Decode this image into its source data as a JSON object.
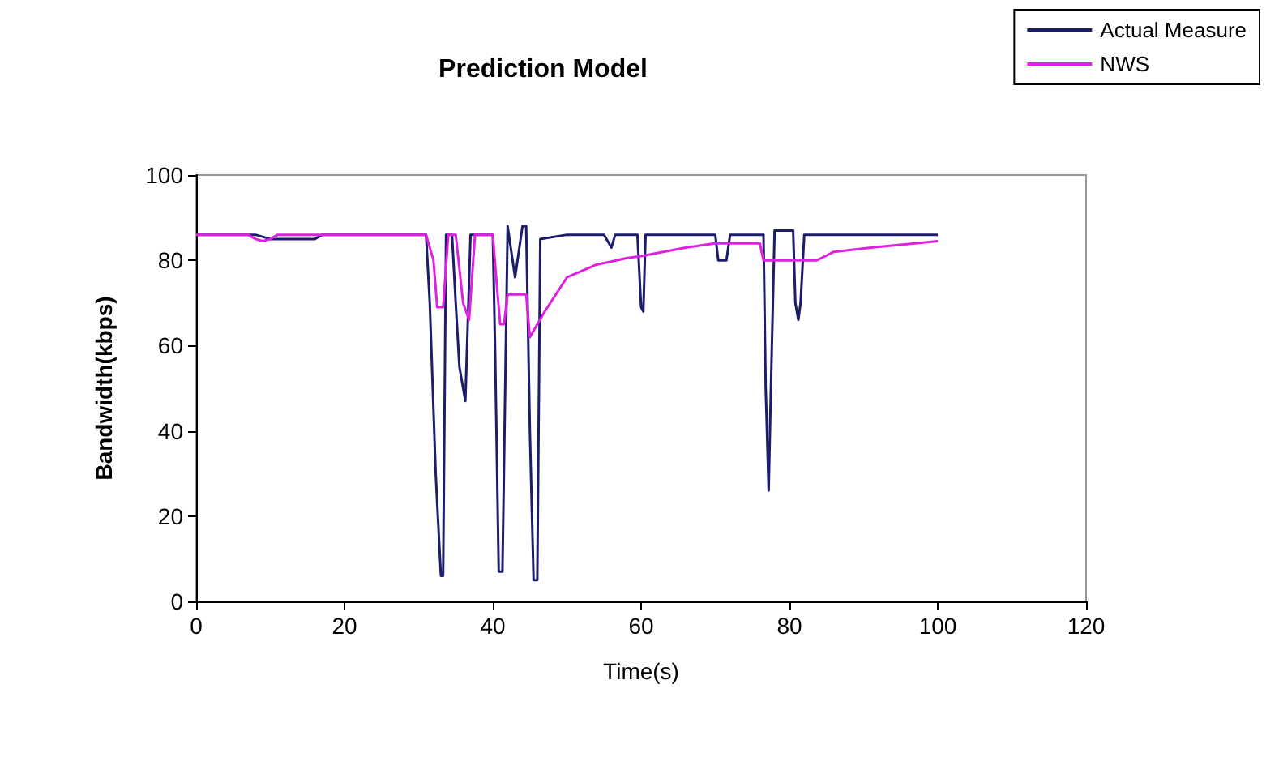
{
  "chart_data": {
    "type": "line",
    "title": "Prediction Model",
    "xlabel": "Time(s)",
    "ylabel": "Bandwidth(kbps)",
    "series": [
      {
        "name": "Actual Measure",
        "color": "#1c1c6c",
        "x": [
          0,
          8,
          10,
          16,
          17,
          20,
          24,
          31,
          31.5,
          32.3,
          33,
          33.3,
          33.7,
          34.5,
          35,
          35.5,
          36.3,
          37,
          37.5,
          40,
          40.3,
          40.8,
          41.3,
          42,
          42.5,
          43,
          43.5,
          44,
          44.5,
          45,
          45.5,
          46,
          46.4,
          50,
          55,
          56,
          56.5,
          59.5,
          60,
          60.3,
          60.6,
          61,
          65,
          70,
          70.4,
          71.5,
          72,
          76.5,
          76.8,
          77.2,
          77.5,
          78,
          80.5,
          80.8,
          81.2,
          81.5,
          82,
          90,
          100
        ],
        "values": [
          86,
          86,
          85,
          85,
          86,
          86,
          86,
          86,
          70,
          30,
          6,
          6,
          86,
          86,
          70,
          55,
          47,
          86,
          86,
          86,
          60,
          7,
          7,
          88,
          82,
          76,
          82,
          88,
          88,
          40,
          5,
          5,
          85,
          86,
          86,
          83,
          86,
          86,
          69,
          68,
          86,
          86,
          86,
          86,
          80,
          80,
          86,
          86,
          50,
          26,
          50,
          87,
          87,
          70,
          66,
          70,
          86,
          86,
          86
        ]
      },
      {
        "name": "NWS",
        "color": "#e020e0",
        "x": [
          0,
          7,
          8,
          9,
          10,
          11,
          31,
          32,
          32.5,
          33.3,
          34,
          35,
          36,
          36.8,
          37.6,
          40,
          40.5,
          41,
          41.5,
          42,
          44.5,
          45,
          47,
          50,
          54,
          58,
          60,
          63,
          66,
          70,
          76,
          76.5,
          80,
          83.7,
          86,
          91,
          100
        ],
        "values": [
          86,
          86,
          85,
          84.5,
          85,
          86,
          86,
          80,
          69,
          69,
          86,
          86,
          70,
          66,
          86,
          86,
          75,
          65,
          65,
          72,
          72,
          62,
          68,
          76,
          79,
          80.5,
          81,
          82,
          83,
          84,
          84,
          80,
          80,
          80,
          82,
          83,
          84.5
        ]
      }
    ],
    "xlim": [
      0,
      120
    ],
    "xticks": [
      0,
      20,
      40,
      60,
      80,
      100,
      120
    ],
    "ylim": [
      0,
      100
    ],
    "yticks": [
      0,
      20,
      40,
      60,
      80,
      100
    ],
    "grid": false,
    "legend": "top right",
    "marker": "none",
    "line_style": "solid"
  }
}
